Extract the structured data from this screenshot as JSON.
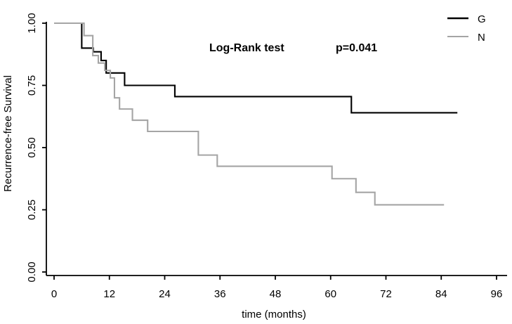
{
  "chart_data": {
    "type": "line",
    "subtype": "kaplan-meier-step",
    "title": "",
    "xlabel": "time (months)",
    "ylabel": "Recurrence-free Survival",
    "xlim": [
      0,
      96
    ],
    "ylim": [
      0.0,
      1.0
    ],
    "grid": false,
    "x_ticks": [
      {
        "value": 0,
        "label": "0"
      },
      {
        "value": 12,
        "label": "12"
      },
      {
        "value": 24,
        "label": "24"
      },
      {
        "value": 36,
        "label": "36"
      },
      {
        "value": 48,
        "label": "48"
      },
      {
        "value": 60,
        "label": "60"
      },
      {
        "value": 72,
        "label": "72"
      },
      {
        "value": 84,
        "label": "84"
      },
      {
        "value": 96,
        "label": "96"
      }
    ],
    "y_ticks": [
      {
        "value": 0.0,
        "label": "0.00"
      },
      {
        "value": 0.25,
        "label": "0.25"
      },
      {
        "value": 0.5,
        "label": "0.50"
      },
      {
        "value": 0.75,
        "label": "0.75"
      },
      {
        "value": 1.0,
        "label": "1.00"
      }
    ],
    "annotation": {
      "test_label": "Log-Rank test",
      "p_value": "p=0.041"
    },
    "legend": {
      "position": "top-right",
      "entries": [
        {
          "label": "G",
          "color": "#000000"
        },
        {
          "label": "N",
          "color": "#a5a5a5"
        }
      ]
    },
    "series": [
      {
        "name": "G",
        "color": "#000000",
        "start": {
          "t": 0,
          "survival": 1.0
        },
        "steps": [
          [
            6.0,
            0.9
          ],
          [
            8.5,
            0.885
          ],
          [
            10.2,
            0.85
          ],
          [
            11.3,
            0.8
          ],
          [
            15.3,
            0.75
          ],
          [
            26.2,
            0.705
          ],
          [
            64.5,
            0.64
          ]
        ],
        "end_t": 87.5,
        "end_survival": 0.64
      },
      {
        "name": "N",
        "color": "#a5a5a5",
        "start": {
          "t": 0,
          "survival": 1.0
        },
        "steps": [
          [
            6.5,
            0.95
          ],
          [
            8.4,
            0.87
          ],
          [
            9.6,
            0.84
          ],
          [
            11.0,
            0.81
          ],
          [
            12.2,
            0.78
          ],
          [
            13.1,
            0.7
          ],
          [
            14.2,
            0.655
          ],
          [
            17.0,
            0.61
          ],
          [
            20.3,
            0.565
          ],
          [
            31.3,
            0.47
          ],
          [
            35.4,
            0.425
          ],
          [
            60.3,
            0.375
          ],
          [
            65.5,
            0.32
          ],
          [
            69.6,
            0.27
          ]
        ],
        "end_t": 84.6,
        "end_survival": 0.27
      }
    ]
  }
}
